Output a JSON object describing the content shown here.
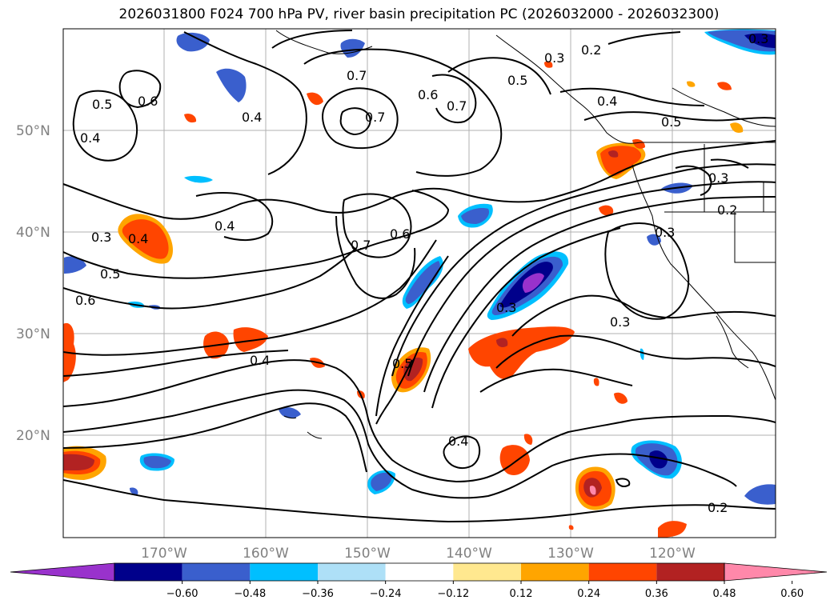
{
  "title": "2026031800 F024 700 hPa PV, river basin precipitation PC (2026032000 - 2026032300)",
  "map": {
    "lat_labels": [
      "50°N",
      "40°N",
      "30°N",
      "20°N"
    ],
    "lon_labels": [
      "170°W",
      "160°W",
      "150°W",
      "140°W",
      "130°W",
      "120°W"
    ],
    "contour_labels": [
      "0.5",
      "0.6",
      "0.4",
      "0.7",
      "0.7",
      "0.6",
      "0.7",
      "0.5",
      "0.2",
      "0.4",
      "0.5",
      "0.3",
      "0.4",
      "0.3",
      "0.5",
      "0.6",
      "0.4",
      "0.7",
      "0.6",
      "0.3",
      "0.2",
      "0.3",
      "0.4",
      "0.5",
      "0.3",
      "0.4",
      "0.2",
      "0.3",
      "0.4",
      "0.3"
    ]
  },
  "colorbar": {
    "colors": [
      "#9932CC",
      "#00008B",
      "#3A5FCD",
      "#00BFFF",
      "#AEE0F7",
      "#FFFFFF",
      "#FFE88F",
      "#FFA500",
      "#FF4500",
      "#B22222",
      "#FF88AA"
    ],
    "tick_labels": [
      "−0.60",
      "−0.48",
      "−0.36",
      "−0.24",
      "−0.12",
      "0.12",
      "0.24",
      "0.36",
      "0.48",
      "0.60"
    ]
  }
}
